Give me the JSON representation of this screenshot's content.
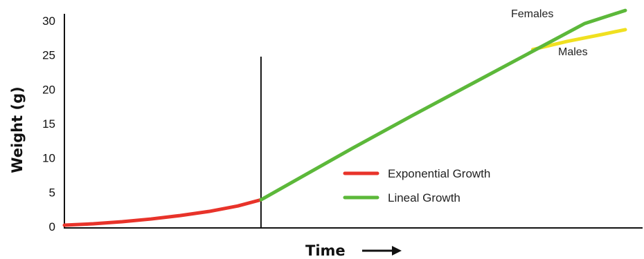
{
  "chart_data": {
    "type": "line",
    "xlabel": "Time",
    "ylabel": "Weight (g)",
    "ylim": [
      0,
      30
    ],
    "yticks": [
      "0",
      "5",
      "10",
      "15",
      "20",
      "25",
      "30"
    ],
    "x_range": [
      0,
      1
    ],
    "divider_x": 0.34,
    "series": [
      {
        "name": "Exponential Growth",
        "color": "#e8332a",
        "x": [
          0,
          0.05,
          0.1,
          0.15,
          0.2,
          0.25,
          0.3,
          0.34
        ],
        "y": [
          0.2,
          0.4,
          0.7,
          1.1,
          1.6,
          2.2,
          3.0,
          3.9
        ]
      },
      {
        "name": "Lineal Growth",
        "color": "#5cb83a",
        "x": [
          0.34,
          0.5,
          0.6,
          0.7,
          0.8,
          0.9,
          0.97
        ],
        "y": [
          3.9,
          11.5,
          16.1,
          20.6,
          25.1,
          29.6,
          31.5
        ]
      },
      {
        "name": "Males",
        "color": "#f0e020",
        "x": [
          0.81,
          0.87,
          0.93,
          0.97
        ],
        "y": [
          25.8,
          27.0,
          28.0,
          28.7
        ]
      }
    ],
    "annotations": {
      "females": "Females",
      "males": "Males"
    },
    "legend": [
      {
        "label": "Exponential Growth",
        "color": "#e8332a"
      },
      {
        "label": "Lineal Growth",
        "color": "#5cb83a"
      }
    ],
    "grid": false
  }
}
